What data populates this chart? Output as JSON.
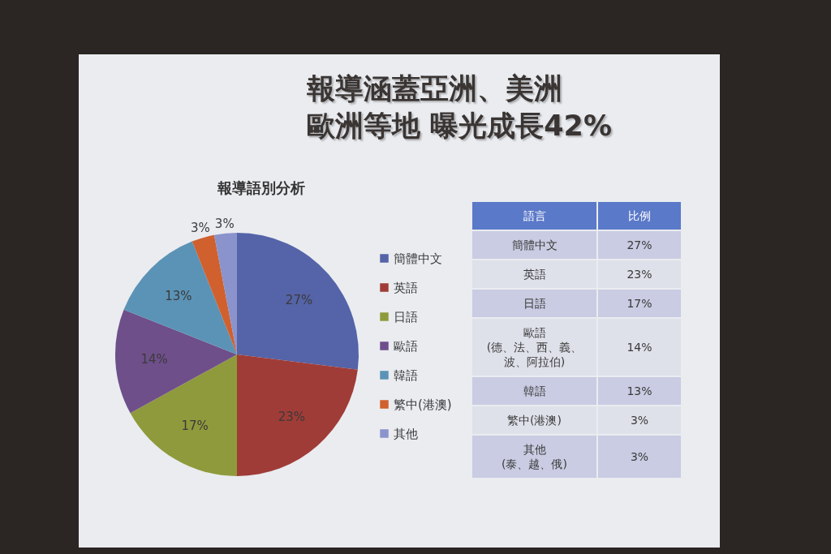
{
  "chart_data": {
    "type": "pie",
    "title": "報導涵蓋亞洲、美洲歐洲等地 曝光成長42%",
    "subtitle": "報導語別分析",
    "categories": [
      "簡體中文",
      "英語",
      "日語",
      "歐語",
      "韓語",
      "繁中(港澳)",
      "其他"
    ],
    "values": [
      27,
      23,
      17,
      14,
      13,
      3,
      3
    ],
    "colors": [
      "#5563a8",
      "#a03c37",
      "#8f9a3c",
      "#6e4f8a",
      "#5b93b6",
      "#d0602e",
      "#8b93cc"
    ],
    "value_labels": [
      "27%",
      "23%",
      "17%",
      "14%",
      "13%",
      "3%",
      "3%"
    ],
    "legend": "right",
    "annotations": [
      "語言",
      "比例",
      {
        "text": "(德、法、西、義、波、阿拉伯)",
        "x": "歐語"
      },
      {
        "text": "(泰、越、俄)",
        "x": "其他"
      }
    ]
  }
}
